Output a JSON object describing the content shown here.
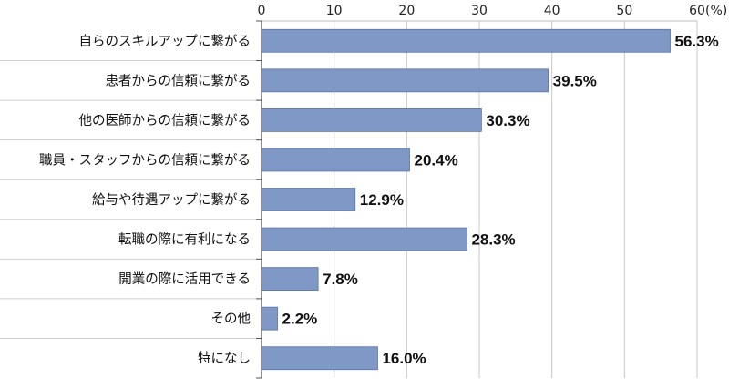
{
  "chart_data": {
    "type": "bar",
    "orientation": "horizontal",
    "categories": [
      "自らのスキルアップに繋がる",
      "患者からの信頼に繋がる",
      "他の医師からの信頼に繋がる",
      "職員・スタッフからの信頼に繋がる",
      "給与や待遇アップに繋がる",
      "転職の際に有利になる",
      "開業の際に活用できる",
      "その他",
      "特になし"
    ],
    "values": [
      56.3,
      39.5,
      30.3,
      20.4,
      12.9,
      28.3,
      7.8,
      2.2,
      16.0
    ],
    "value_labels": [
      "56.3%",
      "39.5%",
      "30.3%",
      "20.4%",
      "12.9%",
      "28.3%",
      "7.8%",
      "2.2%",
      "16.0%"
    ],
    "x_ticks": [
      "0",
      "10",
      "20",
      "30",
      "40",
      "50",
      "60"
    ],
    "x_unit": "(%)",
    "xlim": [
      0,
      60
    ],
    "grid": true,
    "bar_color": "#7f98c6",
    "bar_border_color": "#5b76a8",
    "grid_color": "#c8c8c8"
  }
}
